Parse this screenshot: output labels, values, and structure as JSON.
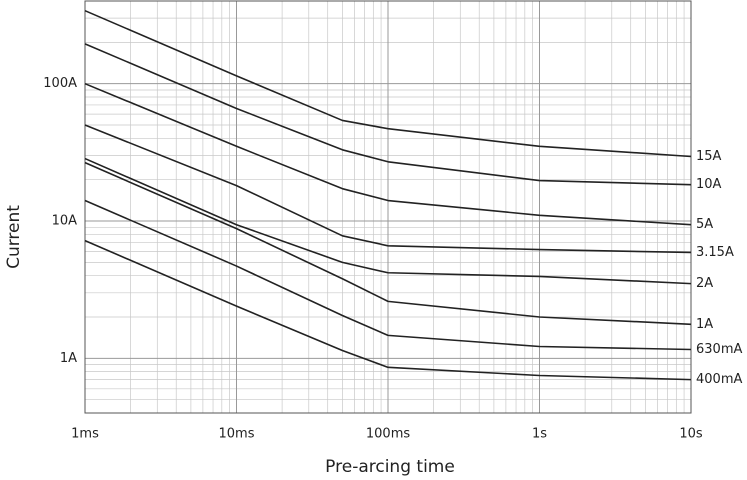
{
  "chart_data": {
    "type": "line",
    "x_label": "Pre-arcing time",
    "y_label": "Current",
    "log_x": true,
    "log_y": true,
    "grid": true,
    "minor_grid": true,
    "color": "#222222",
    "x": [
      0.001,
      0.01,
      0.05,
      0.1,
      1,
      10
    ],
    "xlim": [
      0.001,
      10
    ],
    "xticks": [
      {
        "value": 0.001,
        "label": "1ms"
      },
      {
        "value": 0.01,
        "label": "10ms"
      },
      {
        "value": 0.1,
        "label": "100ms"
      },
      {
        "value": 1,
        "label": "1s"
      },
      {
        "value": 10,
        "label": "10s"
      }
    ],
    "ylim": [
      0.4,
      400
    ],
    "yticks": [
      {
        "value": 1,
        "label": "1A"
      },
      {
        "value": 10,
        "label": "10A"
      },
      {
        "value": 100,
        "label": "100A"
      }
    ],
    "series": [
      {
        "name": "15A",
        "values": [
          340,
          114,
          54,
          47,
          35,
          29.5
        ]
      },
      {
        "name": "10A",
        "values": [
          195,
          66,
          33,
          27,
          19.7,
          18.4
        ]
      },
      {
        "name": "5A",
        "values": [
          100,
          35,
          17.2,
          14.1,
          11,
          9.4
        ]
      },
      {
        "name": "3.15A",
        "values": [
          50,
          18.1,
          7.8,
          6.6,
          6.2,
          5.9
        ]
      },
      {
        "name": "2A",
        "values": [
          28.5,
          9.4,
          5.0,
          4.2,
          3.95,
          3.5
        ]
      },
      {
        "name": "1A",
        "values": [
          26.6,
          8.8,
          3.8,
          2.6,
          2.0,
          1.77
        ]
      },
      {
        "name": "630mA",
        "values": [
          14.1,
          4.7,
          2.05,
          1.47,
          1.22,
          1.16
        ]
      },
      {
        "name": "400mA",
        "values": [
          7.2,
          2.4,
          1.14,
          0.86,
          0.75,
          0.7
        ]
      }
    ]
  }
}
